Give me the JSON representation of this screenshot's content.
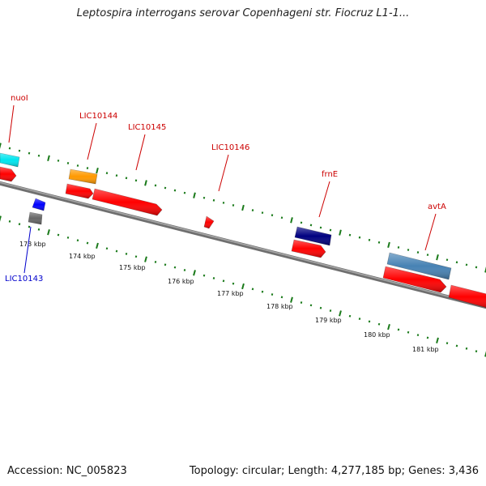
{
  "title": "Leptospira interrogans serovar Copenhageni str. Fiocruz L1-1...",
  "footer": {
    "accession": "Accession: NC_005823",
    "summary": "Topology: circular; Length: 4,277,185 bp; Genes: 3,436"
  },
  "colors": {
    "backbone": "#808080",
    "tick": "#1a7a1a",
    "label_red": "#cc0000",
    "label_blue": "#0000cc",
    "cds": "#ff0000",
    "cyan_feature": "#00e5ee",
    "orange_feature": "#ff9900",
    "navy_feature": "#000080",
    "steelblue_feature": "#4682b4",
    "blue_feature": "#0000ff",
    "gray_feature": "#666666"
  },
  "scale": {
    "tick_labels": [
      "173 kbp",
      "174 kbp",
      "175 kbp",
      "176 kbp",
      "177 kbp",
      "178 kbp",
      "179 kbp",
      "180 kbp",
      "181 kbp"
    ]
  },
  "gene_labels": [
    {
      "name": "nuoI",
      "color": "red"
    },
    {
      "name": "LIC10144",
      "color": "red"
    },
    {
      "name": "LIC10145",
      "color": "red"
    },
    {
      "name": "LIC10146",
      "color": "red"
    },
    {
      "name": "frnE",
      "color": "red"
    },
    {
      "name": "avtA",
      "color": "red"
    },
    {
      "name": "LIC10143",
      "color": "blue"
    }
  ]
}
